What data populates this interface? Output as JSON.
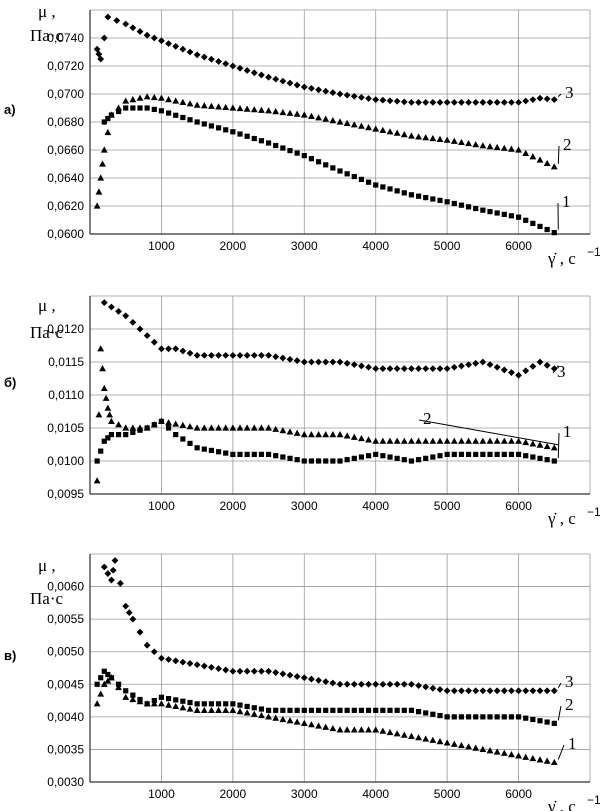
{
  "chart_data": [
    {
      "type": "scatter",
      "panel_label": "а)",
      "ylabel_sym": "μ ,",
      "ylabel_unit": "Па·с",
      "xlabel_sym": "γ̇ , с",
      "xlabel_exp": "−1",
      "yticks": [
        "0,0600",
        "0,0620",
        "0,0640",
        "0,0660",
        "0,0680",
        "0,0700",
        "0,0720",
        "0,0740"
      ],
      "ylim": [
        0.06,
        0.076
      ],
      "xticks": [
        "1000",
        "2000",
        "3000",
        "4000",
        "5000",
        "6000"
      ],
      "xlim": [
        0,
        7000
      ],
      "series": [
        {
          "name": "1",
          "marker": "square",
          "points": [
            [
              200,
              0.068
            ],
            [
              300,
              0.0685
            ],
            [
              500,
              0.069
            ],
            [
              800,
              0.069
            ],
            [
              1000,
              0.0688
            ],
            [
              1500,
              0.068
            ],
            [
              2000,
              0.0673
            ],
            [
              2500,
              0.0665
            ],
            [
              3000,
              0.0656
            ],
            [
              3500,
              0.0645
            ],
            [
              4000,
              0.0635
            ],
            [
              4500,
              0.0628
            ],
            [
              5000,
              0.0623
            ],
            [
              5500,
              0.0617
            ],
            [
              6000,
              0.0612
            ],
            [
              6500,
              0.0601
            ]
          ]
        },
        {
          "name": "2",
          "marker": "triangle",
          "points": [
            [
              100,
              0.062
            ],
            [
              150,
              0.064
            ],
            [
              200,
              0.066
            ],
            [
              300,
              0.0685
            ],
            [
              500,
              0.0695
            ],
            [
              800,
              0.0698
            ],
            [
              1000,
              0.0697
            ],
            [
              1500,
              0.0692
            ],
            [
              2000,
              0.069
            ],
            [
              2500,
              0.0688
            ],
            [
              3000,
              0.0685
            ],
            [
              3500,
              0.068
            ],
            [
              4000,
              0.0675
            ],
            [
              4500,
              0.067
            ],
            [
              5000,
              0.0667
            ],
            [
              5500,
              0.0663
            ],
            [
              6000,
              0.066
            ],
            [
              6500,
              0.0648
            ]
          ]
        },
        {
          "name": "3",
          "marker": "diamond",
          "points": [
            [
              100,
              0.0732
            ],
            [
              150,
              0.0725
            ],
            [
              250,
              0.0755
            ],
            [
              500,
              0.075
            ],
            [
              800,
              0.0742
            ],
            [
              1000,
              0.0738
            ],
            [
              1500,
              0.0728
            ],
            [
              2000,
              0.072
            ],
            [
              2500,
              0.0712
            ],
            [
              3000,
              0.0705
            ],
            [
              3500,
              0.07
            ],
            [
              4000,
              0.0696
            ],
            [
              4500,
              0.0694
            ],
            [
              5000,
              0.0694
            ],
            [
              5500,
              0.0694
            ],
            [
              6000,
              0.0694
            ],
            [
              6300,
              0.0697
            ],
            [
              6500,
              0.0696
            ]
          ]
        }
      ]
    },
    {
      "type": "scatter",
      "panel_label": "б)",
      "ylabel_sym": "μ ,",
      "ylabel_unit": "Па·с",
      "xlabel_sym": "γ̇ , с",
      "xlabel_exp": "−1",
      "yticks": [
        "0,0095",
        "0,0100",
        "0,0105",
        "0,0110",
        "0,0115",
        "0,0120"
      ],
      "ylim": [
        0.0095,
        0.0125
      ],
      "xticks": [
        "1000",
        "2000",
        "3000",
        "4000",
        "5000",
        "6000"
      ],
      "xlim": [
        0,
        7000
      ],
      "series": [
        {
          "name": "1",
          "marker": "square",
          "points": [
            [
              100,
              0.01
            ],
            [
              200,
              0.0103
            ],
            [
              300,
              0.0104
            ],
            [
              500,
              0.0104
            ],
            [
              800,
              0.0105
            ],
            [
              1000,
              0.0106
            ],
            [
              1200,
              0.0104
            ],
            [
              1500,
              0.0102
            ],
            [
              2000,
              0.0101
            ],
            [
              2500,
              0.0101
            ],
            [
              3000,
              0.01
            ],
            [
              3500,
              0.01
            ],
            [
              4000,
              0.0101
            ],
            [
              4500,
              0.01
            ],
            [
              5000,
              0.0101
            ],
            [
              5500,
              0.0101
            ],
            [
              6000,
              0.0101
            ],
            [
              6500,
              0.01
            ]
          ]
        },
        {
          "name": "2",
          "marker": "triangle",
          "points": [
            [
              100,
              0.0097
            ],
            [
              150,
              0.0117
            ],
            [
              200,
              0.0111
            ],
            [
              250,
              0.0108
            ],
            [
              300,
              0.0106
            ],
            [
              500,
              0.0105
            ],
            [
              800,
              0.0105
            ],
            [
              1000,
              0.0106
            ],
            [
              1500,
              0.0105
            ],
            [
              2000,
              0.0105
            ],
            [
              2500,
              0.0105
            ],
            [
              3000,
              0.0104
            ],
            [
              3500,
              0.0104
            ],
            [
              4000,
              0.0103
            ],
            [
              4500,
              0.0103
            ],
            [
              5000,
              0.0103
            ],
            [
              5500,
              0.0103
            ],
            [
              6000,
              0.0103
            ],
            [
              6500,
              0.0102
            ]
          ]
        },
        {
          "name": "3",
          "marker": "diamond",
          "points": [
            [
              200,
              0.0124
            ],
            [
              500,
              0.0122
            ],
            [
              700,
              0.012
            ],
            [
              1000,
              0.0117
            ],
            [
              1200,
              0.0117
            ],
            [
              1500,
              0.0116
            ],
            [
              2000,
              0.0116
            ],
            [
              2500,
              0.0116
            ],
            [
              3000,
              0.0115
            ],
            [
              3500,
              0.0115
            ],
            [
              4000,
              0.0114
            ],
            [
              4500,
              0.0114
            ],
            [
              5000,
              0.0114
            ],
            [
              5500,
              0.0115
            ],
            [
              6000,
              0.0113
            ],
            [
              6300,
              0.0115
            ],
            [
              6500,
              0.0114
            ]
          ]
        }
      ]
    },
    {
      "type": "scatter",
      "panel_label": "в)",
      "ylabel_sym": "μ ,",
      "ylabel_unit": "Па·с",
      "xlabel_sym": "γ̇ , с",
      "xlabel_exp": "−1",
      "yticks": [
        "0,0030",
        "0,0035",
        "0,0040",
        "0,0045",
        "0,0050",
        "0,0055",
        "0,0060"
      ],
      "ylim": [
        0.003,
        0.0065
      ],
      "xticks": [
        "1000",
        "2000",
        "3000",
        "4000",
        "5000",
        "6000"
      ],
      "xlim": [
        0,
        7000
      ],
      "series": [
        {
          "name": "1",
          "marker": "triangle",
          "points": [
            [
              100,
              0.0042
            ],
            [
              200,
              0.0045
            ],
            [
              300,
              0.0046
            ],
            [
              500,
              0.0043
            ],
            [
              800,
              0.0042
            ],
            [
              1000,
              0.0042
            ],
            [
              1500,
              0.0041
            ],
            [
              2000,
              0.0041
            ],
            [
              2500,
              0.004
            ],
            [
              3000,
              0.0039
            ],
            [
              3500,
              0.0038
            ],
            [
              4000,
              0.0038
            ],
            [
              4500,
              0.0037
            ],
            [
              5000,
              0.0036
            ],
            [
              5500,
              0.0035
            ],
            [
              6000,
              0.0034
            ],
            [
              6500,
              0.0033
            ]
          ]
        },
        {
          "name": "2",
          "marker": "square",
          "points": [
            [
              100,
              0.0045
            ],
            [
              200,
              0.0047
            ],
            [
              300,
              0.0046
            ],
            [
              500,
              0.0044
            ],
            [
              800,
              0.0042
            ],
            [
              1000,
              0.0043
            ],
            [
              1500,
              0.0042
            ],
            [
              2000,
              0.0042
            ],
            [
              2500,
              0.0041
            ],
            [
              3000,
              0.0041
            ],
            [
              3500,
              0.0041
            ],
            [
              4000,
              0.0041
            ],
            [
              4500,
              0.0041
            ],
            [
              5000,
              0.004
            ],
            [
              5500,
              0.004
            ],
            [
              6000,
              0.004
            ],
            [
              6500,
              0.0039
            ]
          ]
        },
        {
          "name": "3",
          "marker": "diamond",
          "points": [
            [
              200,
              0.0063
            ],
            [
              300,
              0.0061
            ],
            [
              350,
              0.0064
            ],
            [
              500,
              0.0057
            ],
            [
              600,
              0.0055
            ],
            [
              800,
              0.0051
            ],
            [
              1000,
              0.0049
            ],
            [
              1500,
              0.0048
            ],
            [
              2000,
              0.0047
            ],
            [
              2500,
              0.0047
            ],
            [
              3000,
              0.0046
            ],
            [
              3500,
              0.0045
            ],
            [
              4000,
              0.0045
            ],
            [
              4500,
              0.0045
            ],
            [
              5000,
              0.0044
            ],
            [
              5500,
              0.0044
            ],
            [
              6000,
              0.0044
            ],
            [
              6500,
              0.0044
            ]
          ]
        }
      ]
    }
  ]
}
